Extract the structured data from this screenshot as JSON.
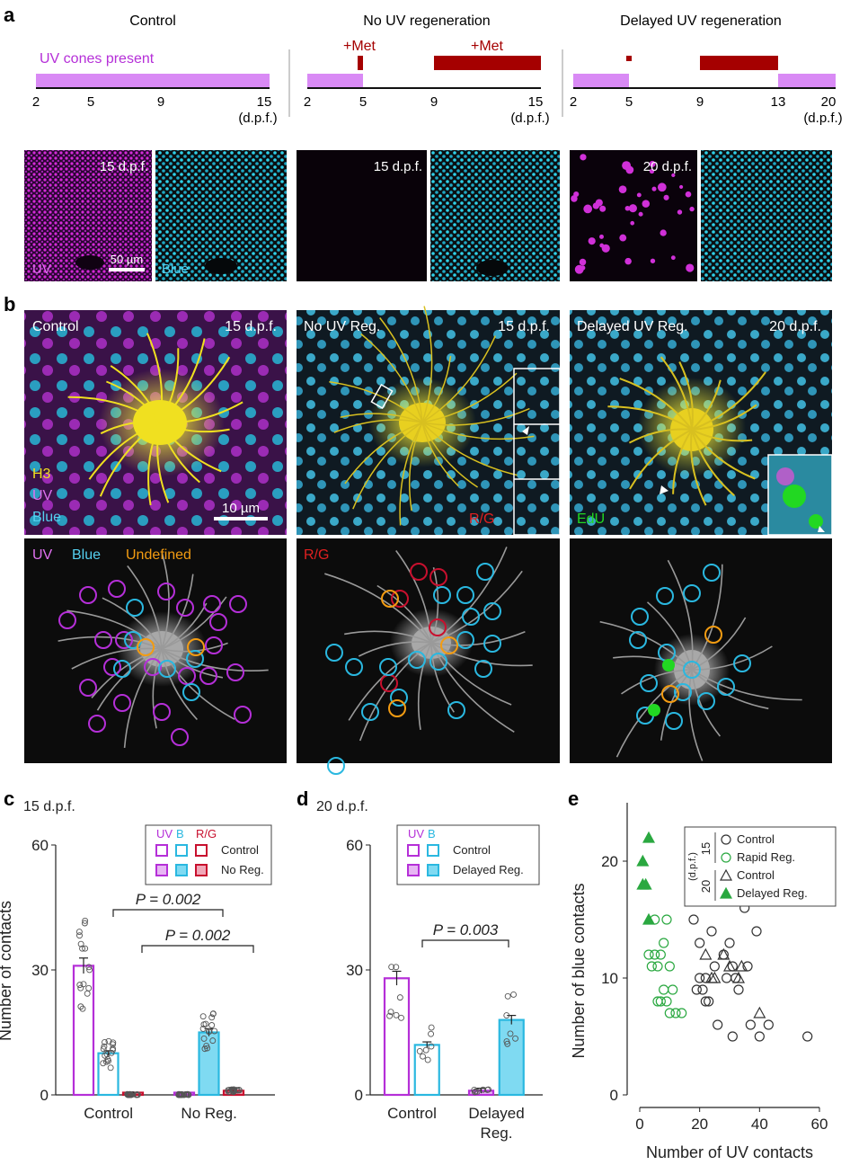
{
  "panel_labels": {
    "a": "a",
    "b": "b",
    "c": "c",
    "d": "d",
    "e": "e"
  },
  "colors": {
    "uv": "#b52fd8",
    "blue": "#2ab8e0",
    "rg": "#c8102e",
    "undef": "#f39c12",
    "met": "#a50000",
    "lav": "#d98af5",
    "edu": "#22d822",
    "h3": "#f0e020",
    "green": "#2aa840"
  },
  "panel_a": {
    "timelines": [
      {
        "title": "Control",
        "uv_label": "UV cones present",
        "ticks": [
          "2",
          "5",
          "9",
          "15"
        ],
        "unit": "(d.p.f.)"
      },
      {
        "title": "No UV regeneration",
        "met_labels": [
          "+Met",
          "+Met"
        ],
        "ticks": [
          "2",
          "5",
          "9",
          "15"
        ],
        "unit": "(d.p.f.)"
      },
      {
        "title": "Delayed UV regeneration",
        "ticks": [
          "2",
          "5",
          "9",
          "13",
          "20"
        ],
        "unit": "(d.p.f.)"
      }
    ],
    "images": [
      {
        "time": "15 d.p.f.",
        "uv_label": "UV",
        "blue_label": "Blue",
        "scalebar": "50 µm"
      },
      {
        "time": "15 d.p.f."
      },
      {
        "time": "20 d.p.f."
      }
    ]
  },
  "panel_b": {
    "top": [
      {
        "title": "Control",
        "time": "15 d.p.f.",
        "labels": [
          "H3",
          "UV",
          "Blue"
        ],
        "scalebar": "10 µm"
      },
      {
        "title": "No UV Reg.",
        "time": "15 d.p.f.",
        "label": "R/G"
      },
      {
        "title": "Delayed UV Reg.",
        "time": "20 d.p.f.",
        "label": "EdU"
      }
    ],
    "bottom_legends": [
      {
        "uv": "UV",
        "blue": "Blue",
        "undef": "Undefined"
      },
      {
        "rg": "R/G"
      }
    ]
  },
  "chart_data": [
    {
      "panel": "c",
      "type": "bar",
      "title": "15 d.p.f.",
      "ylabel": "Number of contacts",
      "ylim": [
        0,
        60
      ],
      "yticks": [
        0,
        30,
        60
      ],
      "categories": [
        "Control",
        "No Reg."
      ],
      "legend": {
        "headers": [
          "UV",
          "B",
          "R/G"
        ],
        "entries": [
          "Control",
          "No Reg."
        ]
      },
      "series": [
        {
          "name": "Control",
          "values": {
            "UV": 31,
            "B": 10,
            "R/G": 0
          }
        },
        {
          "name": "No Reg.",
          "values": {
            "UV": 0,
            "B": 15,
            "R/G": 1
          }
        }
      ],
      "stats": [
        {
          "label": "P = 0.002",
          "pair": "Control UV vs No Reg. UV"
        },
        {
          "label": "P = 0.002",
          "pair": "Control B vs No Reg. B"
        }
      ]
    },
    {
      "panel": "d",
      "type": "bar",
      "title": "20 d.p.f.",
      "ylabel": "",
      "ylim": [
        0,
        60
      ],
      "yticks": [
        0,
        30,
        60
      ],
      "categories": [
        "Control",
        "Delayed Reg."
      ],
      "legend": {
        "headers": [
          "UV",
          "B"
        ],
        "entries": [
          "Control",
          "Delayed Reg."
        ]
      },
      "series": [
        {
          "name": "Control",
          "values": {
            "UV": 28,
            "B": 12
          }
        },
        {
          "name": "Delayed Reg.",
          "values": {
            "UV": 1,
            "B": 18
          }
        }
      ],
      "stats": [
        {
          "label": "P = 0.003",
          "pair": "Control B vs Delayed Reg. B"
        }
      ]
    },
    {
      "panel": "e",
      "type": "scatter",
      "xlabel": "Number of UV contacts",
      "ylabel": "Number of blue contacts",
      "xlim": [
        0,
        60
      ],
      "ylim": [
        0,
        25
      ],
      "xticks": [
        0,
        20,
        40,
        60
      ],
      "yticks": [
        0,
        10,
        20
      ],
      "legend": {
        "group1": "15",
        "group2": "20",
        "unit": "(d.p.f.)",
        "entries": [
          "Control",
          "Rapid Reg.",
          "Control",
          "Delayed Reg."
        ]
      },
      "series": [
        {
          "name": "Control",
          "group": "15",
          "points": [
            [
              18,
              15
            ],
            [
              20,
              13
            ],
            [
              24,
              14
            ],
            [
              35,
              16
            ],
            [
              39,
              14
            ],
            [
              19,
              9
            ],
            [
              20,
              10
            ],
            [
              21,
              9
            ],
            [
              22,
              10
            ],
            [
              23,
              8
            ],
            [
              25,
              11
            ],
            [
              26,
              6
            ],
            [
              28,
              12
            ],
            [
              30,
              13
            ],
            [
              31,
              11
            ],
            [
              32,
              10
            ],
            [
              33,
              9
            ],
            [
              31,
              5
            ],
            [
              36,
              11
            ],
            [
              37,
              6
            ],
            [
              40,
              5
            ],
            [
              43,
              6
            ],
            [
              56,
              5
            ],
            [
              29,
              10
            ],
            [
              22,
              8
            ]
          ]
        },
        {
          "name": "Rapid Reg.",
          "group": "15",
          "points": [
            [
              5,
              15
            ],
            [
              9,
              15
            ],
            [
              3,
              12
            ],
            [
              5,
              12
            ],
            [
              7,
              12
            ],
            [
              8,
              13
            ],
            [
              4,
              11
            ],
            [
              6,
              11
            ],
            [
              10,
              11
            ],
            [
              11,
              9
            ],
            [
              6,
              8
            ],
            [
              7,
              8
            ],
            [
              9,
              8
            ],
            [
              10,
              7
            ],
            [
              12,
              7
            ],
            [
              14,
              7
            ],
            [
              8,
              9
            ]
          ]
        },
        {
          "name": "Control",
          "group": "20",
          "points": [
            [
              31,
              17
            ],
            [
              28,
              12
            ],
            [
              24,
              10
            ],
            [
              22,
              12
            ],
            [
              25,
              10
            ],
            [
              30,
              11
            ],
            [
              33,
              10
            ],
            [
              34,
              11
            ],
            [
              40,
              7
            ]
          ]
        },
        {
          "name": "Delayed Reg.",
          "group": "20",
          "points": [
            [
              3,
              22
            ],
            [
              1,
              20
            ],
            [
              1,
              18
            ],
            [
              2,
              18
            ],
            [
              3,
              15
            ]
          ]
        }
      ]
    }
  ]
}
